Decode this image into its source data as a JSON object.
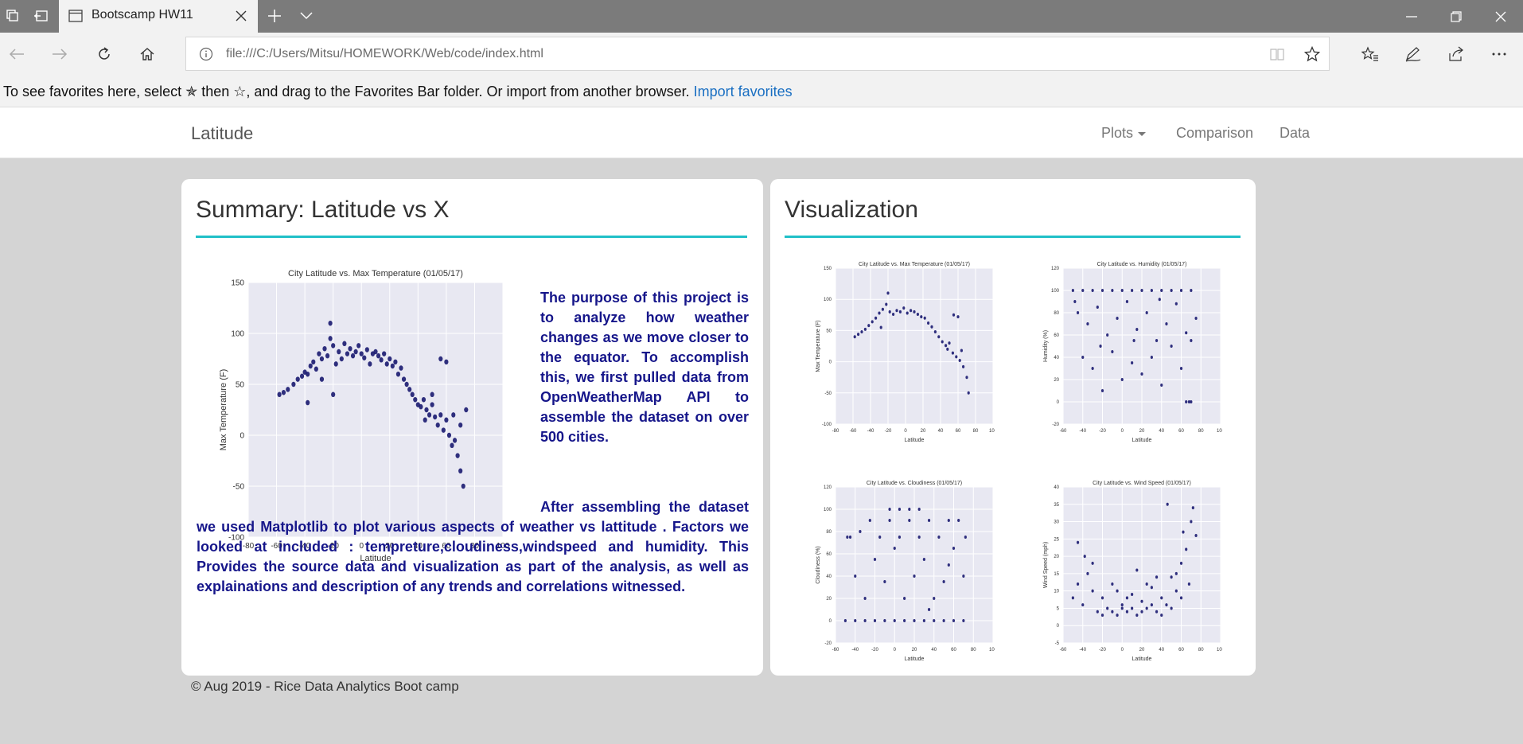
{
  "browser": {
    "tab_title": "Bootscamp HW11",
    "address": "file:///C:/Users/Mitsu/HOMEWORK/Web/code/index.html",
    "favorites_hint": "To see favorites here, select  ✯  then ☆, and drag to the Favorites Bar folder. Or import from another browser.",
    "import_link": "Import favorites"
  },
  "nav": {
    "brand": "Latitude",
    "items": [
      "Plots",
      "Comparison",
      "Data"
    ]
  },
  "summary": {
    "heading": "Summary: Latitude vs X",
    "paragraph1": "The purpose of this project is to analyze how weather changes as we move closer to the equator. To accomplish this, we first pulled data from OpenWeatherMap API to assemble the dataset on over 500 cities.",
    "paragraph2": "After assembling the dataset we used Matplotlib to plot various aspects of weather vs lattitude . Factors we looked at included : tempreture,cloudiness,windspeed and humidity. This Provides the source data and visualization as part of the analysis, as well as explainations and description of any trends and correlations witnessed."
  },
  "visualization": {
    "heading": "Visualization"
  },
  "footer": "© Aug 2019 - Rice Data Analytics Boot camp",
  "colors": {
    "accent_rule": "#20c0c8",
    "text_blue": "#16168a",
    "point_color": "#1a1a70",
    "plot_bg": "#e8e8f2"
  },
  "chart_data": [
    {
      "id": "summary-temp",
      "type": "scatter",
      "title": "City Latitude vs. Max Temperature (01/05/17)",
      "xlabel": "Latitude",
      "ylabel": "Max Temperature (F)",
      "xlim": [
        -80,
        100
      ],
      "ylim": [
        -100,
        150
      ],
      "xticks": [
        "-80",
        "-60",
        "-40",
        "-20",
        "0",
        "20",
        "40",
        "60",
        "80",
        "100"
      ],
      "yticks": [
        "150",
        "100",
        "50",
        "0",
        "-50",
        "-100"
      ],
      "grid": true,
      "points": [
        [
          -58,
          40
        ],
        [
          -55,
          42
        ],
        [
          -52,
          45
        ],
        [
          -48,
          50
        ],
        [
          -45,
          55
        ],
        [
          -42,
          58
        ],
        [
          -40,
          62
        ],
        [
          -38,
          60
        ],
        [
          -36,
          68
        ],
        [
          -34,
          72
        ],
        [
          -32,
          65
        ],
        [
          -30,
          80
        ],
        [
          -28,
          75
        ],
        [
          -26,
          85
        ],
        [
          -24,
          78
        ],
        [
          -22,
          95
        ],
        [
          -22,
          110
        ],
        [
          -20,
          88
        ],
        [
          -18,
          70
        ],
        [
          -16,
          82
        ],
        [
          -14,
          75
        ],
        [
          -12,
          90
        ],
        [
          -10,
          80
        ],
        [
          -8,
          85
        ],
        [
          -6,
          78
        ],
        [
          -4,
          82
        ],
        [
          -2,
          88
        ],
        [
          0,
          80
        ],
        [
          2,
          76
        ],
        [
          4,
          84
        ],
        [
          6,
          70
        ],
        [
          8,
          80
        ],
        [
          10,
          82
        ],
        [
          12,
          78
        ],
        [
          14,
          74
        ],
        [
          16,
          80
        ],
        [
          18,
          70
        ],
        [
          20,
          75
        ],
        [
          22,
          68
        ],
        [
          24,
          72
        ],
        [
          26,
          60
        ],
        [
          28,
          66
        ],
        [
          30,
          55
        ],
        [
          32,
          50
        ],
        [
          34,
          45
        ],
        [
          36,
          40
        ],
        [
          38,
          35
        ],
        [
          40,
          30
        ],
        [
          42,
          28
        ],
        [
          44,
          35
        ],
        [
          46,
          25
        ],
        [
          48,
          20
        ],
        [
          50,
          30
        ],
        [
          52,
          18
        ],
        [
          54,
          10
        ],
        [
          56,
          20
        ],
        [
          58,
          5
        ],
        [
          60,
          15
        ],
        [
          62,
          0
        ],
        [
          64,
          -10
        ],
        [
          66,
          -5
        ],
        [
          68,
          -20
        ],
        [
          70,
          -35
        ],
        [
          72,
          -50
        ],
        [
          56,
          75
        ],
        [
          60,
          72
        ],
        [
          -28,
          55
        ],
        [
          -20,
          40
        ],
        [
          -38,
          32
        ],
        [
          50,
          40
        ],
        [
          65,
          20
        ],
        [
          70,
          10
        ],
        [
          74,
          25
        ],
        [
          45,
          15
        ]
      ]
    },
    {
      "id": "mini-temp",
      "type": "scatter",
      "title": "City Latitude vs. Max Temperature (01/05/17)",
      "xlabel": "Latitude",
      "ylabel": "Max Temperature (F)",
      "xlim": [
        -80,
        100
      ],
      "ylim": [
        -100,
        150
      ],
      "xticks": [
        "-80",
        "-60",
        "-40",
        "-20",
        "0",
        "20",
        "40",
        "60",
        "80",
        "100"
      ],
      "yticks": [
        "150",
        "100",
        "50",
        "0",
        "-50",
        "-100"
      ],
      "grid": true,
      "points": [
        [
          -58,
          40
        ],
        [
          -54,
          44
        ],
        [
          -50,
          48
        ],
        [
          -46,
          52
        ],
        [
          -42,
          58
        ],
        [
          -38,
          64
        ],
        [
          -34,
          70
        ],
        [
          -30,
          78
        ],
        [
          -26,
          84
        ],
        [
          -22,
          92
        ],
        [
          -20,
          110
        ],
        [
          -18,
          80
        ],
        [
          -14,
          76
        ],
        [
          -10,
          82
        ],
        [
          -6,
          80
        ],
        [
          -2,
          86
        ],
        [
          2,
          78
        ],
        [
          6,
          82
        ],
        [
          10,
          80
        ],
        [
          14,
          76
        ],
        [
          18,
          72
        ],
        [
          22,
          70
        ],
        [
          26,
          62
        ],
        [
          30,
          56
        ],
        [
          34,
          48
        ],
        [
          38,
          40
        ],
        [
          42,
          32
        ],
        [
          46,
          26
        ],
        [
          50,
          30
        ],
        [
          54,
          14
        ],
        [
          58,
          8
        ],
        [
          62,
          2
        ],
        [
          66,
          -8
        ],
        [
          70,
          -25
        ],
        [
          72,
          -50
        ],
        [
          60,
          72
        ],
        [
          55,
          75
        ],
        [
          -28,
          55
        ],
        [
          48,
          20
        ],
        [
          64,
          18
        ]
      ]
    },
    {
      "id": "mini-humidity",
      "type": "scatter",
      "title": "City Latitude vs. Humidity (01/05/17)",
      "xlabel": "Latitude",
      "ylabel": "Humidity (%)",
      "xlim": [
        -60,
        100
      ],
      "ylim": [
        -20,
        120
      ],
      "xticks": [
        "-60",
        "-40",
        "-20",
        "0",
        "20",
        "40",
        "60",
        "80",
        "100"
      ],
      "yticks": [
        "120",
        "100",
        "80",
        "60",
        "40",
        "20",
        "0",
        "-20"
      ],
      "grid": true,
      "points": [
        [
          -50,
          100
        ],
        [
          -40,
          100
        ],
        [
          -30,
          100
        ],
        [
          -20,
          100
        ],
        [
          -10,
          100
        ],
        [
          0,
          100
        ],
        [
          10,
          100
        ],
        [
          20,
          100
        ],
        [
          30,
          100
        ],
        [
          40,
          100
        ],
        [
          50,
          100
        ],
        [
          60,
          100
        ],
        [
          70,
          100
        ],
        [
          -45,
          80
        ],
        [
          -35,
          70
        ],
        [
          -25,
          85
        ],
        [
          -15,
          60
        ],
        [
          -5,
          75
        ],
        [
          5,
          90
        ],
        [
          15,
          65
        ],
        [
          25,
          80
        ],
        [
          35,
          55
        ],
        [
          45,
          70
        ],
        [
          55,
          88
        ],
        [
          65,
          62
        ],
        [
          75,
          75
        ],
        [
          -40,
          40
        ],
        [
          -30,
          30
        ],
        [
          -20,
          10
        ],
        [
          -10,
          45
        ],
        [
          0,
          20
        ],
        [
          10,
          35
        ],
        [
          20,
          25
        ],
        [
          30,
          40
        ],
        [
          40,
          15
        ],
        [
          50,
          50
        ],
        [
          60,
          30
        ],
        [
          70,
          55
        ],
        [
          65,
          0
        ],
        [
          68,
          0
        ],
        [
          70,
          0
        ],
        [
          -48,
          90
        ],
        [
          -22,
          50
        ],
        [
          12,
          55
        ],
        [
          38,
          92
        ]
      ]
    },
    {
      "id": "mini-cloudiness",
      "type": "scatter",
      "title": "City Latitude vs. Cloudiness (01/05/17)",
      "xlabel": "Latitude",
      "ylabel": "Cloudiness (%)",
      "xlim": [
        -60,
        100
      ],
      "ylim": [
        -20,
        120
      ],
      "xticks": [
        "-60",
        "-40",
        "-20",
        "0",
        "20",
        "40",
        "60",
        "80",
        "100"
      ],
      "yticks": [
        "120",
        "100",
        "80",
        "60",
        "40",
        "20",
        "0",
        "-20"
      ],
      "grid": true,
      "points": [
        [
          -50,
          0
        ],
        [
          -40,
          0
        ],
        [
          -30,
          0
        ],
        [
          -20,
          0
        ],
        [
          -10,
          0
        ],
        [
          0,
          0
        ],
        [
          10,
          0
        ],
        [
          20,
          0
        ],
        [
          30,
          0
        ],
        [
          40,
          0
        ],
        [
          50,
          0
        ],
        [
          60,
          0
        ],
        [
          70,
          0
        ],
        [
          -45,
          75
        ],
        [
          -35,
          80
        ],
        [
          -25,
          90
        ],
        [
          -15,
          75
        ],
        [
          -5,
          90
        ],
        [
          5,
          75
        ],
        [
          15,
          90
        ],
        [
          25,
          75
        ],
        [
          35,
          90
        ],
        [
          45,
          75
        ],
        [
          55,
          90
        ],
        [
          65,
          90
        ],
        [
          72,
          75
        ],
        [
          -40,
          40
        ],
        [
          -30,
          20
        ],
        [
          -20,
          55
        ],
        [
          -10,
          35
        ],
        [
          0,
          65
        ],
        [
          10,
          20
        ],
        [
          20,
          40
        ],
        [
          30,
          55
        ],
        [
          40,
          20
        ],
        [
          50,
          35
        ],
        [
          60,
          65
        ],
        [
          70,
          40
        ],
        [
          -5,
          100
        ],
        [
          5,
          100
        ],
        [
          15,
          100
        ],
        [
          25,
          100
        ],
        [
          -48,
          75
        ],
        [
          35,
          10
        ],
        [
          55,
          50
        ]
      ]
    },
    {
      "id": "mini-wind",
      "type": "scatter",
      "title": "City Latitude vs. Wind Speed (01/05/17)",
      "xlabel": "Latitude",
      "ylabel": "Wind Speed (mph)",
      "xlim": [
        -60,
        100
      ],
      "ylim": [
        -5,
        40
      ],
      "xticks": [
        "-60",
        "-40",
        "-20",
        "0",
        "20",
        "40",
        "60",
        "80",
        "100"
      ],
      "yticks": [
        "40",
        "35",
        "30",
        "25",
        "20",
        "15",
        "10",
        "5",
        "0",
        "-5"
      ],
      "grid": true,
      "points": [
        [
          -50,
          8
        ],
        [
          -45,
          12
        ],
        [
          -40,
          6
        ],
        [
          -35,
          15
        ],
        [
          -30,
          10
        ],
        [
          -25,
          4
        ],
        [
          -20,
          8
        ],
        [
          -15,
          5
        ],
        [
          -10,
          12
        ],
        [
          -5,
          3
        ],
        [
          0,
          6
        ],
        [
          5,
          4
        ],
        [
          10,
          9
        ],
        [
          15,
          3
        ],
        [
          20,
          7
        ],
        [
          25,
          5
        ],
        [
          30,
          11
        ],
        [
          35,
          4
        ],
        [
          40,
          8
        ],
        [
          45,
          6
        ],
        [
          50,
          14
        ],
        [
          55,
          10
        ],
        [
          60,
          18
        ],
        [
          65,
          22
        ],
        [
          70,
          30
        ],
        [
          72,
          34
        ],
        [
          75,
          26
        ],
        [
          -45,
          24
        ],
        [
          -38,
          20
        ],
        [
          -30,
          18
        ],
        [
          -20,
          3
        ],
        [
          -10,
          4
        ],
        [
          0,
          5
        ],
        [
          10,
          5
        ],
        [
          20,
          4
        ],
        [
          30,
          6
        ],
        [
          40,
          3
        ],
        [
          50,
          5
        ],
        [
          60,
          8
        ],
        [
          68,
          12
        ],
        [
          46,
          35
        ],
        [
          55,
          15
        ],
        [
          62,
          27
        ],
        [
          35,
          14
        ],
        [
          25,
          12
        ],
        [
          15,
          16
        ],
        [
          5,
          8
        ],
        [
          -5,
          10
        ]
      ]
    }
  ]
}
